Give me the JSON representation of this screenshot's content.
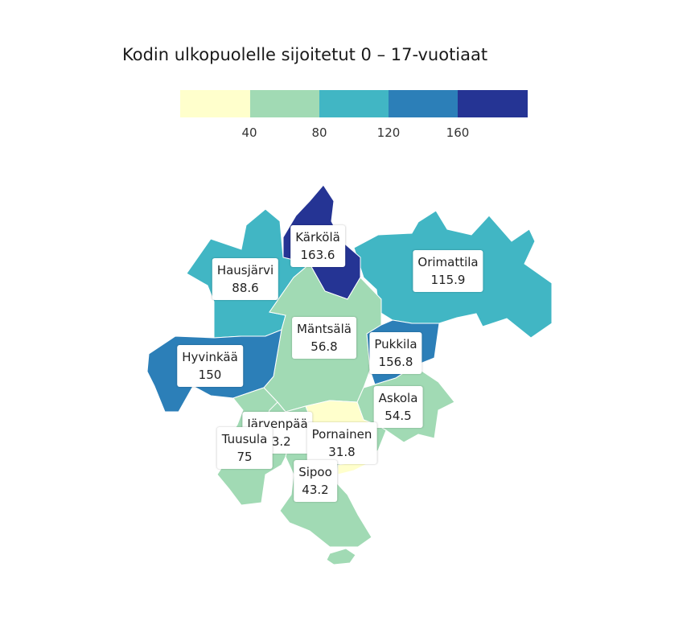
{
  "title": "Kodin ulkopuolelle sijoitetut 0 – 17-vuotiaat",
  "legend": {
    "colors": [
      "#ffffcc",
      "#a1dab4",
      "#41b6c4",
      "#2c7fb8",
      "#253494"
    ],
    "ticks": [
      "40",
      "80",
      "120",
      "160"
    ]
  },
  "municipalities": [
    {
      "name": "Kärkölä",
      "value": "163.6",
      "color": "#253494"
    },
    {
      "name": "Hausjärvi",
      "value": "88.6",
      "color": "#41b6c4"
    },
    {
      "name": "Orimattila",
      "value": "115.9",
      "color": "#41b6c4"
    },
    {
      "name": "Mäntsälä",
      "value": "56.8",
      "color": "#a1dab4"
    },
    {
      "name": "Hyvinkää",
      "value": "150",
      "color": "#2c7fb8"
    },
    {
      "name": "Pukkila",
      "value": "156.8",
      "color": "#2c7fb8"
    },
    {
      "name": "Askola",
      "value": "54.5",
      "color": "#a1dab4"
    },
    {
      "name": "Järvenpää",
      "value": "43.2",
      "color": "#a1dab4"
    },
    {
      "name": "Pornainen",
      "value": "31.8",
      "color": "#ffffcc"
    },
    {
      "name": "Tuusula",
      "value": "75",
      "color": "#a1dab4"
    },
    {
      "name": "Sipoo",
      "value": "43.2",
      "color": "#a1dab4"
    }
  ]
}
